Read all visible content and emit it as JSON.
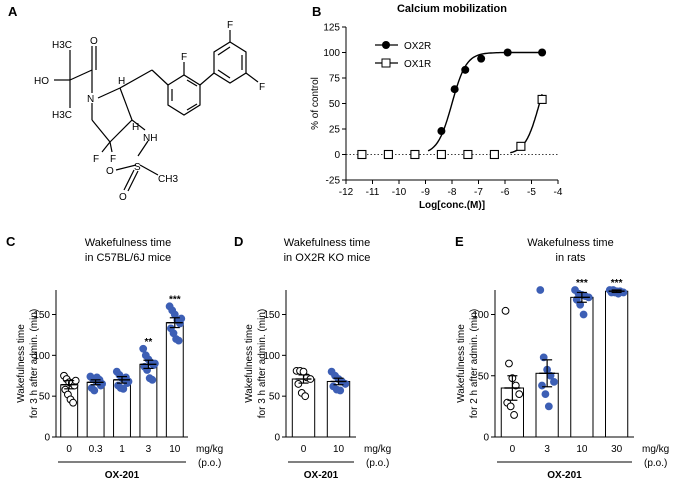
{
  "colors": {
    "filled": "#3d5fb5",
    "line": "#000000",
    "open_fill": "#ffffff"
  },
  "panel_a": {
    "letter": "A",
    "structure": {
      "atoms": [
        "H3C",
        "HO",
        "H3C",
        "O",
        "N",
        "H",
        "F",
        "F",
        "F",
        "H",
        "NH",
        "F",
        "F",
        "S",
        "O",
        "O",
        "CH3"
      ]
    }
  },
  "chart_data": [
    {
      "id": "B",
      "letter": "B",
      "type": "line",
      "title": "Calcium mobilization",
      "xlabel": "Log[conc.(M)]",
      "ylabel": "% of control",
      "xlim": [
        -12,
        -4
      ],
      "ylim": [
        -25,
        125
      ],
      "xticks": [
        "-12",
        "-11",
        "-10",
        "-9",
        "-8",
        "-7",
        "-6",
        "-5",
        "-4"
      ],
      "yticks": [
        "-25",
        "0",
        "25",
        "50",
        "75",
        "100",
        "125"
      ],
      "legend_position": "top-left",
      "series": [
        {
          "name": "OX2R",
          "marker": "filled-circle",
          "x": [
            -8.4,
            -7.9,
            -7.5,
            -6.9,
            -5.9,
            -4.6
          ],
          "y": [
            23,
            64,
            83,
            94,
            100,
            100
          ],
          "fit_ec50": -8.0,
          "fit_top": 100
        },
        {
          "name": "OX1R",
          "marker": "open-square",
          "x": [
            -11.4,
            -10.4,
            -9.4,
            -8.4,
            -7.4,
            -6.4,
            -5.4,
            -4.6
          ],
          "y": [
            0,
            0,
            0,
            0,
            0,
            0,
            8,
            54
          ],
          "fit_ec50": -4.7,
          "fit_top": 100
        }
      ],
      "reference_line": 0
    },
    {
      "id": "C",
      "letter": "C",
      "type": "bar",
      "title": [
        "Wakefulness time",
        "in C57BL/6J mice"
      ],
      "ylabel": [
        "Wakefulness time",
        "for 3 h after admin. (min)"
      ],
      "ylim": [
        0,
        180
      ],
      "yticks": [
        "0",
        "50",
        "100",
        "150"
      ],
      "categories": [
        "0",
        "0.3",
        "1",
        "3",
        "10"
      ],
      "unit": [
        "mg/kg",
        "(p.o.)"
      ],
      "group_label": "OX-201",
      "means": [
        64,
        67,
        70,
        89,
        140
      ],
      "sem": [
        5,
        3,
        4,
        5,
        6
      ],
      "significance": [
        "",
        "",
        "",
        "**",
        "***"
      ],
      "points": [
        [
          75,
          71,
          67,
          66,
          63,
          58,
          52,
          46,
          42,
          69
        ],
        [
          74,
          71,
          69,
          67,
          63,
          60,
          57,
          73,
          70,
          65
        ],
        [
          80,
          76,
          72,
          70,
          66,
          63,
          60,
          59,
          73,
          68
        ],
        [
          108,
          100,
          95,
          91,
          88,
          86,
          82,
          72,
          70,
          90
        ],
        [
          160,
          155,
          150,
          143,
          139,
          133,
          127,
          120,
          118,
          145
        ]
      ]
    },
    {
      "id": "D",
      "letter": "D",
      "type": "bar",
      "title": [
        "Wakefulness time",
        "in OX2R KO mice"
      ],
      "ylabel": [
        "Wakefulness time",
        "for 3 h after admin. (min)"
      ],
      "ylim": [
        0,
        180
      ],
      "yticks": [
        "0",
        "50",
        "100",
        "150"
      ],
      "categories": [
        "0",
        "10"
      ],
      "unit": [
        "mg/kg",
        "(p.o.)"
      ],
      "group_label": "OX-201",
      "means": [
        71,
        68
      ],
      "sem": [
        5,
        4
      ],
      "significance": [
        "",
        ""
      ],
      "points": [
        [
          81,
          81,
          80,
          73,
          71,
          65,
          54,
          50
        ],
        [
          80,
          75,
          71,
          68,
          65,
          62,
          58,
          57
        ]
      ]
    },
    {
      "id": "E",
      "letter": "E",
      "type": "bar",
      "title": [
        "Wakefulness time",
        "in rats"
      ],
      "ylabel": [
        "Wakefulness time",
        "for 2 h after admin. (min)"
      ],
      "ylim": [
        0,
        120
      ],
      "yticks": [
        "0",
        "50",
        "100"
      ],
      "categories": [
        "0",
        "3",
        "10",
        "30"
      ],
      "unit": [
        "mg/kg",
        "(p.o.)"
      ],
      "group_label": "OX-201",
      "means": [
        40,
        52,
        114,
        119
      ],
      "sem": [
        10,
        11,
        4,
        1
      ],
      "significance": [
        "",
        "",
        "***",
        "***"
      ],
      "points": [
        [
          103,
          60,
          48,
          42,
          35,
          28,
          25,
          18
        ],
        [
          120,
          65,
          55,
          50,
          45,
          42,
          35,
          25
        ],
        [
          120,
          117,
          116,
          115,
          114,
          112,
          108,
          100
        ],
        [
          120,
          120,
          119,
          119,
          118,
          118,
          118,
          117
        ]
      ]
    }
  ]
}
